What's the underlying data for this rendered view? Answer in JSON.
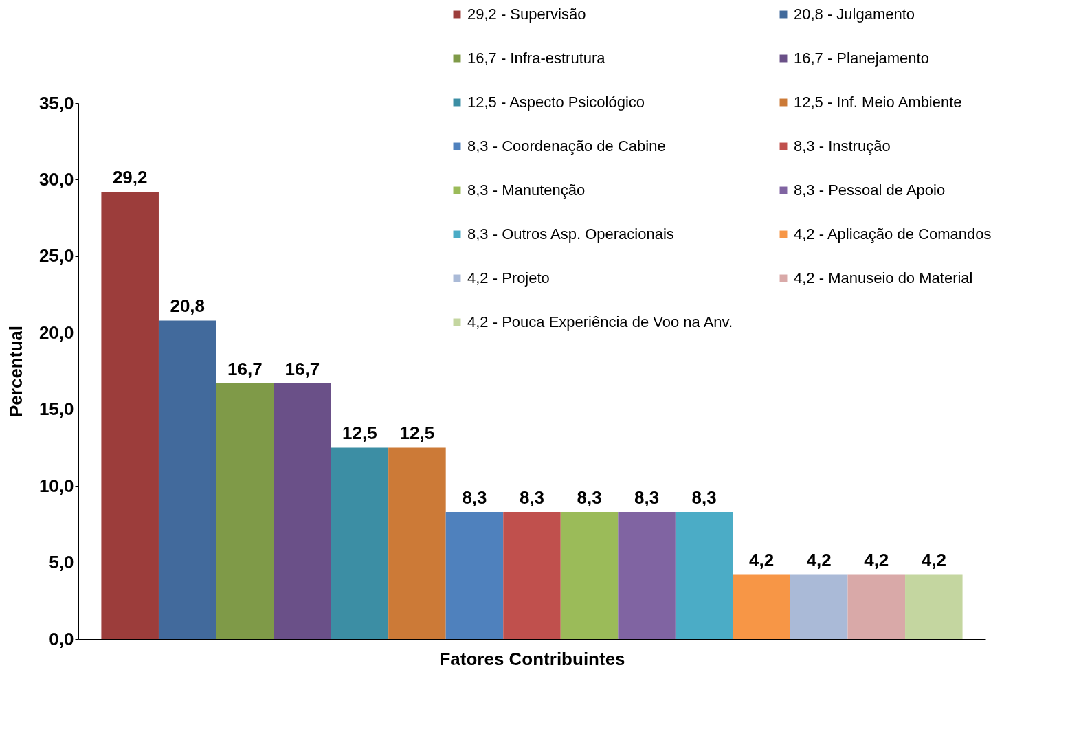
{
  "chart_data": {
    "type": "bar",
    "xlabel": "Fatores Contribuintes",
    "ylabel": "Percentual",
    "categories": [
      null,
      null,
      null,
      null,
      null,
      null,
      null,
      null,
      null,
      null,
      null,
      null,
      null,
      null,
      null
    ],
    "ylim": [
      0,
      35
    ],
    "yticks": [
      {
        "value": 0,
        "label": "0,0"
      },
      {
        "value": 5,
        "label": "5,0"
      },
      {
        "value": 10,
        "label": "10,0"
      },
      {
        "value": 15,
        "label": "15,0"
      },
      {
        "value": 20,
        "label": "20,0"
      },
      {
        "value": 25,
        "label": "25,0"
      },
      {
        "value": 30,
        "label": "30,0"
      },
      {
        "value": 35,
        "label": "35,0"
      }
    ],
    "grid": false,
    "legend": "top right",
    "series": [
      {
        "name": "29,2  - Supervisão",
        "color": "#9c3d3b",
        "values": [
          29.2,
          null,
          null,
          null,
          null,
          null,
          null,
          null,
          null,
          null,
          null,
          null,
          null,
          null,
          null
        ],
        "value_labels": [
          "29,2",
          null,
          null,
          null,
          null,
          null,
          null,
          null,
          null,
          null,
          null,
          null,
          null,
          null,
          null
        ]
      },
      {
        "name": "20,8  - Julgamento",
        "color": "#426a9c",
        "values": [
          null,
          20.8,
          null,
          null,
          null,
          null,
          null,
          null,
          null,
          null,
          null,
          null,
          null,
          null,
          null
        ],
        "value_labels": [
          null,
          "20,8",
          null,
          null,
          null,
          null,
          null,
          null,
          null,
          null,
          null,
          null,
          null,
          null,
          null
        ]
      },
      {
        "name": "16,7  - Infra-estrutura",
        "color": "#7f9a48",
        "values": [
          null,
          null,
          16.7,
          null,
          null,
          null,
          null,
          null,
          null,
          null,
          null,
          null,
          null,
          null,
          null
        ],
        "value_labels": [
          null,
          null,
          "16,7",
          null,
          null,
          null,
          null,
          null,
          null,
          null,
          null,
          null,
          null,
          null,
          null
        ]
      },
      {
        "name": "16,7  - Planejamento",
        "color": "#6a5088",
        "values": [
          null,
          null,
          null,
          16.7,
          null,
          null,
          null,
          null,
          null,
          null,
          null,
          null,
          null,
          null,
          null
        ],
        "value_labels": [
          null,
          null,
          null,
          "16,7",
          null,
          null,
          null,
          null,
          null,
          null,
          null,
          null,
          null,
          null,
          null
        ]
      },
      {
        "name": "12,5  - Aspecto Psicológico",
        "color": "#3c8ea4",
        "values": [
          null,
          null,
          null,
          null,
          12.5,
          null,
          null,
          null,
          null,
          null,
          null,
          null,
          null,
          null,
          null
        ],
        "value_labels": [
          null,
          null,
          null,
          null,
          "12,5",
          null,
          null,
          null,
          null,
          null,
          null,
          null,
          null,
          null,
          null
        ]
      },
      {
        "name": "12,5  - Inf. Meio Ambiente",
        "color": "#cc7a37",
        "values": [
          null,
          null,
          null,
          null,
          null,
          12.5,
          null,
          null,
          null,
          null,
          null,
          null,
          null,
          null,
          null
        ],
        "value_labels": [
          null,
          null,
          null,
          null,
          null,
          "12,5",
          null,
          null,
          null,
          null,
          null,
          null,
          null,
          null,
          null
        ]
      },
      {
        "name": "8,3  - Coordenação de Cabine",
        "color": "#4f81bd",
        "values": [
          null,
          null,
          null,
          null,
          null,
          null,
          8.3,
          null,
          null,
          null,
          null,
          null,
          null,
          null,
          null
        ],
        "value_labels": [
          null,
          null,
          null,
          null,
          null,
          null,
          "8,3",
          null,
          null,
          null,
          null,
          null,
          null,
          null,
          null
        ]
      },
      {
        "name": "8,3  - Instrução",
        "color": "#c0504d",
        "values": [
          null,
          null,
          null,
          null,
          null,
          null,
          null,
          8.3,
          null,
          null,
          null,
          null,
          null,
          null,
          null
        ],
        "value_labels": [
          null,
          null,
          null,
          null,
          null,
          null,
          null,
          "8,3",
          null,
          null,
          null,
          null,
          null,
          null,
          null
        ]
      },
      {
        "name": "8,3  - Manutenção",
        "color": "#9bbb59",
        "values": [
          null,
          null,
          null,
          null,
          null,
          null,
          null,
          null,
          8.3,
          null,
          null,
          null,
          null,
          null,
          null
        ],
        "value_labels": [
          null,
          null,
          null,
          null,
          null,
          null,
          null,
          null,
          "8,3",
          null,
          null,
          null,
          null,
          null,
          null
        ]
      },
      {
        "name": "8,3  - Pessoal de Apoio",
        "color": "#8064a2",
        "values": [
          null,
          null,
          null,
          null,
          null,
          null,
          null,
          null,
          null,
          8.3,
          null,
          null,
          null,
          null,
          null
        ],
        "value_labels": [
          null,
          null,
          null,
          null,
          null,
          null,
          null,
          null,
          null,
          "8,3",
          null,
          null,
          null,
          null,
          null
        ]
      },
      {
        "name": "8,3  - Outros Asp. Operacionais",
        "color": "#4bacc6",
        "values": [
          null,
          null,
          null,
          null,
          null,
          null,
          null,
          null,
          null,
          null,
          8.3,
          null,
          null,
          null,
          null
        ],
        "value_labels": [
          null,
          null,
          null,
          null,
          null,
          null,
          null,
          null,
          null,
          null,
          "8,3",
          null,
          null,
          null,
          null
        ]
      },
      {
        "name": "4,2  - Aplicação de Comandos",
        "color": "#f79646",
        "values": [
          null,
          null,
          null,
          null,
          null,
          null,
          null,
          null,
          null,
          null,
          null,
          4.2,
          null,
          null,
          null
        ],
        "value_labels": [
          null,
          null,
          null,
          null,
          null,
          null,
          null,
          null,
          null,
          null,
          null,
          "4,2",
          null,
          null,
          null
        ]
      },
      {
        "name": "4,2  - Projeto",
        "color": "#aabad7",
        "values": [
          null,
          null,
          null,
          null,
          null,
          null,
          null,
          null,
          null,
          null,
          null,
          null,
          4.2,
          null,
          null
        ],
        "value_labels": [
          null,
          null,
          null,
          null,
          null,
          null,
          null,
          null,
          null,
          null,
          null,
          null,
          "4,2",
          null,
          null
        ]
      },
      {
        "name": "4,2  - Manuseio do Material",
        "color": "#d9a9a8",
        "values": [
          null,
          null,
          null,
          null,
          null,
          null,
          null,
          null,
          null,
          null,
          null,
          null,
          null,
          4.2,
          null
        ],
        "value_labels": [
          null,
          null,
          null,
          null,
          null,
          null,
          null,
          null,
          null,
          null,
          null,
          null,
          null,
          "4,2",
          null
        ]
      },
      {
        "name": "4,2  - Pouca Experiência de Voo na Anv.",
        "color": "#c4d6a0",
        "values": [
          null,
          null,
          null,
          null,
          null,
          null,
          null,
          null,
          null,
          null,
          null,
          null,
          null,
          null,
          4.2
        ],
        "value_labels": [
          null,
          null,
          null,
          null,
          null,
          null,
          null,
          null,
          null,
          null,
          null,
          null,
          null,
          null,
          "4,2"
        ]
      }
    ]
  }
}
